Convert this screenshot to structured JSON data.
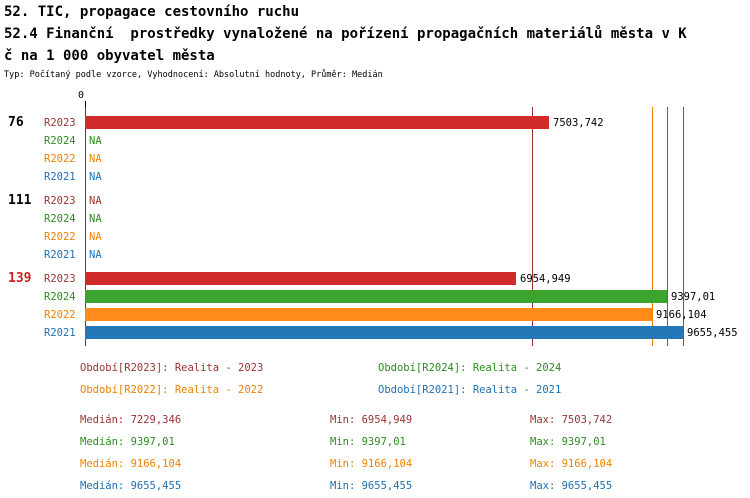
{
  "header": {
    "title_line1": "52. TIC, propagace cestovního ruchu",
    "title_line2": "52.4 Finanční  prostředky vynaložené na pořízení propagačních materiálů města v K",
    "title_line3": "č na 1 000 obyvatel města",
    "meta": "Typ: Počítaný podle vzorce, Vyhodnocení: Absolutní hodnoty, Průměr: Medián"
  },
  "chart_data": {
    "type": "bar",
    "orientation": "horizontal",
    "title": "52. TIC, propagace cestovního ruchu — 52.4 Finanční prostředky vynaložené na pořízení propagačních materiálů města v Kč na 1 000 obyvatel města",
    "subtitle": "Typ: Počítaný podle vzorce, Vyhodnocení: Absolutní hodnoty, Průměr: Medián",
    "x_origin_label": "0",
    "x_max": 9655.455,
    "na_label": "NA",
    "series_order": [
      "R2023",
      "R2024",
      "R2022",
      "R2021"
    ],
    "series": {
      "R2023": {
        "label": "R2023",
        "bar_color": "#d02a2a",
        "text_color": "#993333",
        "median": 7229.346,
        "median_display": "7229,346",
        "min_display": "6954,949",
        "max_display": "7503,742",
        "legend": "Období[R2023]: Realita - 2023"
      },
      "R2024": {
        "label": "R2024",
        "bar_color": "#3aa42c",
        "text_color": "#2e8b22",
        "median": 9397.01,
        "median_display": "9397,01",
        "min_display": "9397,01",
        "max_display": "9397,01",
        "legend": "Období[R2024]: Realita - 2024"
      },
      "R2022": {
        "label": "R2022",
        "bar_color": "#ff8c1a",
        "text_color": "#ef8200",
        "median": 9166.104,
        "median_display": "9166,104",
        "min_display": "9166,104",
        "max_display": "9166,104",
        "legend": "Období[R2022]: Realita - 2022"
      },
      "R2021": {
        "label": "R2021",
        "bar_color": "#2478b8",
        "text_color": "#1f6fb4",
        "median": 9655.455,
        "median_display": "9655,455",
        "min_display": "9655,455",
        "max_display": "9655,455",
        "legend": "Období[R2021]: Realita - 2021"
      }
    },
    "groups": [
      {
        "label": "76",
        "label_color": "#000000",
        "values": {
          "R2023": {
            "v": 7503.742,
            "display": "7503,742"
          },
          "R2024": null,
          "R2022": null,
          "R2021": null
        }
      },
      {
        "label": "111",
        "label_color": "#000000",
        "values": {
          "R2023": null,
          "R2024": null,
          "R2022": null,
          "R2021": null
        }
      },
      {
        "label": "139",
        "label_color": "#cc2222",
        "values": {
          "R2023": {
            "v": 6954.949,
            "display": "6954,949"
          },
          "R2024": {
            "v": 9397.01,
            "display": "9397,01"
          },
          "R2022": {
            "v": 9166.104,
            "display": "9166,104"
          },
          "R2021": {
            "v": 9655.455,
            "display": "9655,455"
          }
        }
      }
    ]
  },
  "legend": {
    "columns": [
      [
        "R2023",
        "R2022"
      ],
      [
        "R2024",
        "R2021"
      ]
    ]
  },
  "stats": {
    "order": [
      "R2023",
      "R2024",
      "R2022",
      "R2021"
    ],
    "labels": {
      "median": "Medián",
      "min": "Min",
      "max": "Max"
    }
  }
}
